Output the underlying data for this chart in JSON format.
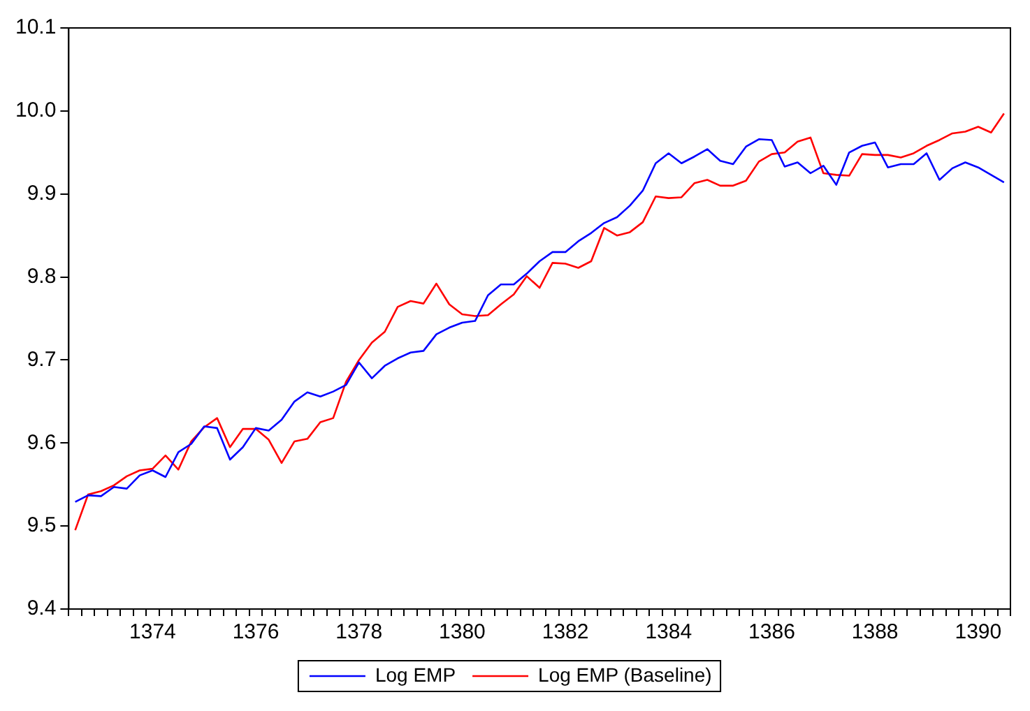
{
  "chart_data": {
    "type": "line",
    "categories": [
      null,
      null,
      null,
      null,
      null,
      null,
      "1374",
      null,
      null,
      null,
      null,
      null,
      null,
      null,
      "1376",
      null,
      null,
      null,
      null,
      null,
      null,
      null,
      "1378",
      null,
      null,
      null,
      null,
      null,
      null,
      null,
      "1380",
      null,
      null,
      null,
      null,
      null,
      null,
      null,
      "1382",
      null,
      null,
      null,
      null,
      null,
      null,
      null,
      "1384",
      null,
      null,
      null,
      null,
      null,
      null,
      null,
      "1386",
      null,
      null,
      null,
      null,
      null,
      null,
      null,
      "1388",
      null,
      null,
      null,
      null,
      null,
      null,
      null,
      "1390",
      null,
      null
    ],
    "series": [
      {
        "name": "Log EMP",
        "color": "#0000ff",
        "values": [
          9.529,
          9.537,
          9.536,
          9.547,
          9.545,
          9.561,
          9.567,
          9.559,
          9.589,
          9.599,
          9.62,
          9.618,
          9.58,
          9.595,
          9.618,
          9.615,
          9.628,
          9.65,
          9.661,
          9.656,
          9.662,
          9.67,
          9.697,
          9.678,
          9.693,
          9.702,
          9.709,
          9.711,
          9.731,
          9.739,
          9.745,
          9.747,
          9.778,
          9.791,
          9.791,
          9.804,
          9.819,
          9.83,
          9.83,
          9.843,
          9.853,
          9.865,
          9.872,
          9.886,
          9.904,
          9.937,
          9.949,
          9.937,
          9.945,
          9.954,
          9.94,
          9.936,
          9.957,
          9.966,
          9.965,
          9.933,
          9.938,
          9.925,
          9.934,
          9.911,
          9.95,
          9.958,
          9.962,
          9.932,
          9.936,
          9.936,
          9.949,
          9.917,
          9.931,
          9.938,
          9.932,
          9.923,
          9.914
        ]
      },
      {
        "name": "Log EMP (Baseline)",
        "color": "#ff0000",
        "values": [
          9.495,
          9.538,
          9.542,
          9.549,
          9.56,
          9.567,
          9.569,
          9.585,
          9.568,
          9.602,
          9.619,
          9.63,
          9.595,
          9.617,
          9.617,
          9.604,
          9.576,
          9.602,
          9.605,
          9.625,
          9.63,
          9.674,
          9.7,
          9.721,
          9.734,
          9.764,
          9.771,
          9.768,
          9.792,
          9.767,
          9.755,
          9.753,
          9.754,
          9.767,
          9.779,
          9.801,
          9.787,
          9.817,
          9.816,
          9.811,
          9.819,
          9.859,
          9.85,
          9.854,
          9.866,
          9.897,
          9.895,
          9.896,
          9.913,
          9.917,
          9.91,
          9.91,
          9.916,
          9.939,
          9.948,
          9.95,
          9.963,
          9.968,
          9.925,
          9.923,
          9.922,
          9.948,
          9.947,
          9.947,
          9.944,
          9.949,
          9.958,
          9.965,
          9.973,
          9.975,
          9.981,
          9.974,
          9.997
        ]
      }
    ],
    "ylim": [
      9.4,
      10.1
    ],
    "yticks": [
      9.4,
      9.5,
      9.6,
      9.7,
      9.8,
      9.9,
      {
        "value": 10,
        "label": "10.0"
      },
      10.1
    ],
    "grid": false,
    "legend": "bottom",
    "marker": "none",
    "line_style": "solid"
  }
}
